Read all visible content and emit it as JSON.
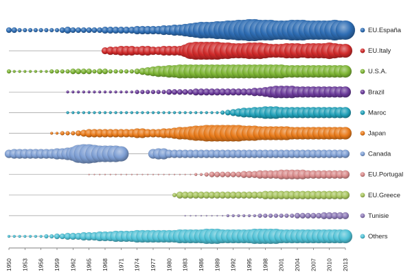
{
  "chart_data": {
    "type": "scatter",
    "title": "",
    "xlabel": "",
    "ylabel": "",
    "xlim": [
      1950,
      2013
    ],
    "x_ticks": [
      "1950",
      "1953",
      "1956",
      "1959",
      "1962",
      "1965",
      "1968",
      "1971",
      "1974",
      "1977",
      "1980",
      "1983",
      "1986",
      "1989",
      "1992",
      "1995",
      "1998",
      "2001",
      "2004",
      "2007",
      "2010",
      "2013"
    ],
    "legend_position": "right",
    "grid": false,
    "marker": "bubble",
    "series": [
      {
        "name": "EU.España",
        "color": "#2E6DB4",
        "segments": [
          {
            "start": 1950,
            "end": 2013,
            "values": [
              4,
              4,
              3,
              3,
              3,
              3,
              3,
              3,
              3,
              3,
              4,
              5,
              4,
              4,
              4,
              4,
              4,
              4,
              5,
              5,
              5,
              5,
              5,
              5,
              6,
              6,
              6,
              6,
              6,
              7,
              7,
              8,
              8,
              9,
              10,
              11,
              12,
              12,
              12,
              13,
              13,
              14,
              14,
              15,
              15,
              16,
              16,
              15,
              15,
              15,
              14,
              14,
              14,
              15,
              15,
              15,
              14,
              14,
              14,
              14,
              14,
              15,
              14,
              14
            ]
          }
        ]
      },
      {
        "name": "EU.Italy",
        "color": "#D02A2A",
        "segments": [
          {
            "start": 1968,
            "end": 2013,
            "values": [
              5,
              6,
              6,
              7,
              7,
              7,
              6,
              7,
              7,
              6,
              6,
              7,
              7,
              7,
              7,
              9,
              12,
              13,
              13,
              13,
              13,
              13,
              12,
              12,
              11,
              11,
              11,
              12,
              12,
              12,
              11,
              10,
              10,
              10,
              11,
              11,
              11,
              10,
              11,
              11,
              11,
              11,
              12,
              11,
              10,
              10
            ]
          }
        ]
      },
      {
        "name": "U.S.A.",
        "color": "#7DB534",
        "segments": [
          {
            "start": 1950,
            "end": 2013,
            "values": [
              3,
              2,
              2,
              2,
              2,
              2,
              2,
              2,
              3,
              3,
              3,
              3,
              4,
              4,
              4,
              4,
              3,
              4,
              4,
              3,
              3,
              3,
              3,
              3,
              4,
              5,
              6,
              7,
              8,
              8,
              9,
              9,
              10,
              10,
              10,
              10,
              10,
              10,
              10,
              10,
              10,
              10,
              10,
              10,
              10,
              10,
              10,
              10,
              10,
              10,
              10,
              10,
              9,
              9,
              9,
              9,
              9,
              9,
              9,
              9,
              9,
              9,
              9,
              9
            ]
          }
        ]
      },
      {
        "name": "Brazil",
        "color": "#6A3A9A",
        "segments": [
          {
            "start": 1961,
            "end": 2013,
            "values": [
              2,
              2,
              2,
              2,
              2,
              2,
              2,
              2,
              2,
              2,
              2,
              2,
              2,
              3,
              3,
              3,
              3,
              3,
              3,
              4,
              4,
              4,
              4,
              4,
              5,
              5,
              5,
              5,
              5,
              5,
              5,
              5,
              5,
              5,
              5,
              6,
              6,
              7,
              8,
              9,
              9,
              9,
              9,
              8,
              8,
              8,
              8,
              8,
              8,
              8,
              8,
              8,
              8
            ]
          }
        ]
      },
      {
        "name": "Maroc",
        "color": "#20A0B8",
        "segments": [
          {
            "start": 1961,
            "end": 2013,
            "values": [
              2,
              2,
              2,
              2,
              2,
              2,
              2,
              2,
              2,
              2,
              2,
              2,
              2,
              2,
              2,
              2,
              2,
              2,
              2,
              2,
              2,
              2,
              2,
              2,
              2,
              2,
              2,
              2,
              2,
              3,
              4,
              5,
              6,
              7,
              7,
              8,
              8,
              9,
              9,
              9,
              8,
              8,
              8,
              8,
              8,
              8,
              8,
              8,
              8,
              8,
              8,
              8,
              8
            ]
          }
        ]
      },
      {
        "name": "Japan",
        "color": "#E87A1A",
        "segments": [
          {
            "start": 1958,
            "end": 2013,
            "values": [
              2,
              2,
              3,
              3,
              3,
              4,
              5,
              6,
              6,
              6,
              6,
              6,
              6,
              6,
              6,
              6,
              7,
              7,
              6,
              6,
              6,
              7,
              7,
              8,
              9,
              9,
              10,
              11,
              11,
              12,
              12,
              12,
              12,
              12,
              12,
              12,
              11,
              11,
              11,
              10,
              10,
              10,
              10,
              10,
              10,
              9,
              9,
              9,
              9,
              9,
              9,
              9,
              9,
              9,
              9,
              9
            ]
          }
        ]
      },
      {
        "name": "Canada",
        "color": "#7E9FD4",
        "segments": [
          {
            "start": 1950,
            "end": 1971,
            "values": [
              6,
              7,
              7,
              7,
              7,
              7,
              7,
              7,
              7,
              8,
              8,
              9,
              10,
              13,
              14,
              14,
              13,
              12,
              12,
              12,
              12,
              11
            ]
          },
          {
            "start": 1977,
            "end": 2013,
            "values": [
              7,
              8,
              8,
              6,
              6,
              6,
              6,
              6,
              6,
              6,
              6,
              6,
              6,
              6,
              6,
              6,
              6,
              6,
              6,
              6,
              6,
              6,
              6,
              6,
              6,
              6,
              6,
              6,
              6,
              6,
              6,
              6,
              6,
              6,
              6,
              6,
              6
            ]
          }
        ]
      },
      {
        "name": "EU.Portugal",
        "color": "#D98A8A",
        "segments": [
          {
            "start": 1965,
            "end": 2013,
            "values": [
              1,
              1,
              1,
              1,
              1,
              1,
              1,
              1,
              1,
              1,
              1,
              1,
              1,
              1,
              1,
              1,
              1,
              1,
              1,
              1,
              2,
              2,
              3,
              4,
              4,
              4,
              4,
              4,
              4,
              5,
              5,
              5,
              6,
              6,
              6,
              6,
              7,
              7,
              7,
              7,
              7,
              6,
              6,
              6,
              6,
              6,
              6,
              6,
              6
            ]
          }
        ]
      },
      {
        "name": "EU.Greece",
        "color": "#A7C45E",
        "segments": [
          {
            "start": 1981,
            "end": 2013,
            "values": [
              3,
              5,
              5,
              5,
              5,
              5,
              5,
              5,
              5,
              5,
              5,
              5,
              5,
              5,
              5,
              5,
              5,
              6,
              6,
              6,
              6,
              6,
              6,
              6,
              6,
              6,
              6,
              6,
              6,
              6,
              6,
              6,
              6
            ]
          }
        ]
      },
      {
        "name": "Tunisie",
        "color": "#8E7BB8",
        "segments": [
          {
            "start": 1983,
            "end": 2013,
            "values": [
              1,
              1,
              1,
              1,
              1,
              1,
              1,
              1,
              2,
              2,
              2,
              2,
              2,
              2,
              3,
              3,
              3,
              3,
              3,
              3,
              3,
              4,
              4,
              4,
              4,
              4,
              5,
              5,
              5,
              5,
              5
            ]
          }
        ]
      },
      {
        "name": "Others",
        "color": "#4FC1D6",
        "segments": [
          {
            "start": 1950,
            "end": 2013,
            "values": [
              2,
              2,
              2,
              2,
              2,
              2,
              2,
              3,
              3,
              4,
              4,
              5,
              5,
              5,
              6,
              6,
              6,
              7,
              7,
              7,
              8,
              8,
              8,
              8,
              9,
              9,
              9,
              9,
              9,
              9,
              9,
              9,
              10,
              10,
              10,
              10,
              10,
              11,
              11,
              11,
              10,
              10,
              10,
              10,
              10,
              10,
              11,
              11,
              11,
              11,
              11,
              10,
              10,
              10,
              10,
              10,
              10,
              10,
              10,
              10,
              10,
              10,
              10,
              10
            ]
          }
        ]
      }
    ]
  }
}
